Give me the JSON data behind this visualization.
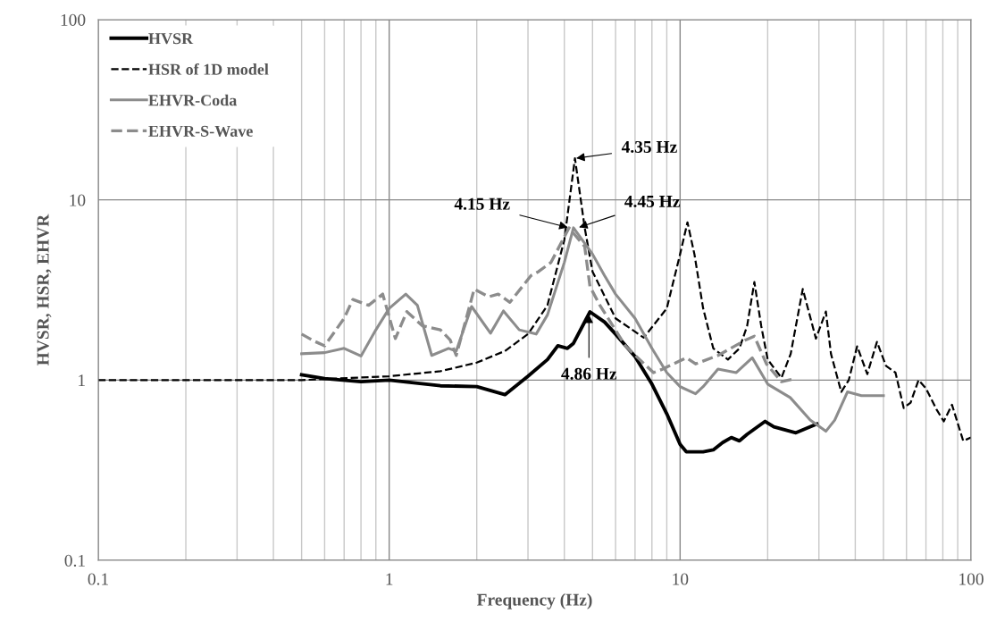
{
  "chart_data": {
    "type": "line",
    "xlabel": "Frequency (Hz)",
    "ylabel": "HVSR, HSR, EHVR",
    "log": "xy",
    "xlim": [
      0.1,
      100
    ],
    "ylim": [
      0.1,
      100
    ],
    "xticks": [
      0.1,
      1,
      10,
      100
    ],
    "yticks": [
      0.1,
      1,
      10,
      100
    ],
    "grid": true,
    "legend": "top left",
    "marker": "none",
    "series": [
      {
        "name": "HVSR",
        "color": "#000000",
        "line_style": "solid",
        "x": [
          0.5,
          0.6,
          0.8,
          1.0,
          1.5,
          2.0,
          2.5,
          3.0,
          3.5,
          3.8,
          4.1,
          4.3,
          4.9,
          5.5,
          6,
          7,
          8,
          9,
          10,
          10.5,
          12,
          13,
          14,
          15,
          16,
          17,
          19.6,
          21,
          25,
          29.5
        ],
        "values": [
          1.07,
          1.02,
          0.98,
          1.0,
          0.93,
          0.92,
          0.83,
          1.05,
          1.3,
          1.55,
          1.5,
          1.6,
          2.39,
          2.1,
          1.8,
          1.35,
          0.95,
          0.65,
          0.44,
          0.4,
          0.4,
          0.41,
          0.45,
          0.48,
          0.46,
          0.5,
          0.59,
          0.55,
          0.51,
          0.57
        ]
      },
      {
        "name": "HSR of 1D model",
        "color": "#000000",
        "line_style": "dashed",
        "x": [
          0.1,
          0.5,
          1,
          1.5,
          2,
          2.5,
          3,
          3.5,
          4,
          4.35,
          4.7,
          5,
          6,
          7.5,
          9,
          10,
          10.6,
          11.2,
          12,
          13,
          14.6,
          16,
          17,
          18,
          19,
          20,
          22.3,
          24,
          26.4,
          29.3,
          31.7,
          33,
          35.8,
          38,
          40.6,
          44,
          47.5,
          51,
          55,
          58.7,
          62,
          66,
          70,
          76,
          80.6,
          86,
          94,
          100
        ],
        "values": [
          1.0,
          1.0,
          1.05,
          1.12,
          1.25,
          1.45,
          1.8,
          2.6,
          6,
          17,
          7,
          4,
          2.2,
          1.72,
          2.5,
          5,
          7.5,
          5,
          2.5,
          1.5,
          1.3,
          1.5,
          2.0,
          3.5,
          2.0,
          1.3,
          1.03,
          1.4,
          3.2,
          1.7,
          2.4,
          1.4,
          0.86,
          1.0,
          1.54,
          1.08,
          1.63,
          1.2,
          1.1,
          0.7,
          0.75,
          1.0,
          0.9,
          0.69,
          0.59,
          0.73,
          0.46,
          0.48
        ]
      },
      {
        "name": "EHVR-Coda",
        "color": "#8c8c8c",
        "line_style": "solid",
        "x": [
          0.5,
          0.6,
          0.7,
          0.8,
          0.9,
          1.0,
          1.14,
          1.25,
          1.4,
          1.6,
          1.7,
          1.92,
          2.23,
          2.47,
          2.8,
          3.2,
          3.5,
          4.0,
          4.3,
          5,
          5.5,
          6,
          7,
          8,
          9,
          10,
          11.3,
          12,
          13.5,
          15.6,
          17.7,
          20,
          23.9,
          28,
          31.7,
          34,
          37.6,
          42,
          50
        ],
        "values": [
          1.4,
          1.42,
          1.5,
          1.36,
          1.9,
          2.5,
          3.0,
          2.6,
          1.37,
          1.5,
          1.45,
          2.56,
          1.82,
          2.42,
          1.9,
          1.8,
          2.3,
          4.5,
          7.0,
          5.0,
          3.8,
          3.0,
          2.2,
          1.5,
          1.1,
          0.92,
          0.84,
          0.92,
          1.15,
          1.1,
          1.33,
          0.95,
          0.8,
          0.6,
          0.52,
          0.6,
          0.86,
          0.82,
          0.82
        ]
      },
      {
        "name": "EHVR-S-Wave",
        "color": "#8c8c8c",
        "line_style": "dashed",
        "x": [
          0.5,
          0.55,
          0.6,
          0.7,
          0.75,
          0.85,
          0.95,
          1.05,
          1.15,
          1.3,
          1.5,
          1.62,
          1.7,
          1.96,
          2.2,
          2.37,
          2.6,
          3.07,
          3.26,
          3.6,
          4.15,
          4.7,
          4.9,
          5.3,
          6.5,
          8.1,
          8.7,
          10.5,
          11.3,
          13.5,
          16.8,
          18,
          19.8,
          22.3,
          25
        ],
        "values": [
          1.8,
          1.65,
          1.55,
          2.2,
          2.8,
          2.6,
          3.0,
          1.7,
          2.4,
          2.0,
          1.9,
          1.67,
          1.37,
          3.2,
          2.9,
          3.0,
          2.7,
          3.8,
          4.0,
          4.5,
          7.0,
          5.5,
          3.3,
          2.6,
          1.54,
          1.1,
          1.15,
          1.33,
          1.23,
          1.37,
          1.67,
          1.75,
          1.23,
          0.98,
          1.02
        ]
      }
    ],
    "annotations": [
      {
        "text": "4.35 Hz",
        "x": 4.35,
        "y": 17
      },
      {
        "text": "4.45 Hz",
        "x": 4.45,
        "y": 7
      },
      {
        "text": "4.15 Hz",
        "x": 4.15,
        "y": 7
      },
      {
        "text": "4.86 Hz",
        "x": 4.86,
        "y": 2.35
      }
    ]
  }
}
